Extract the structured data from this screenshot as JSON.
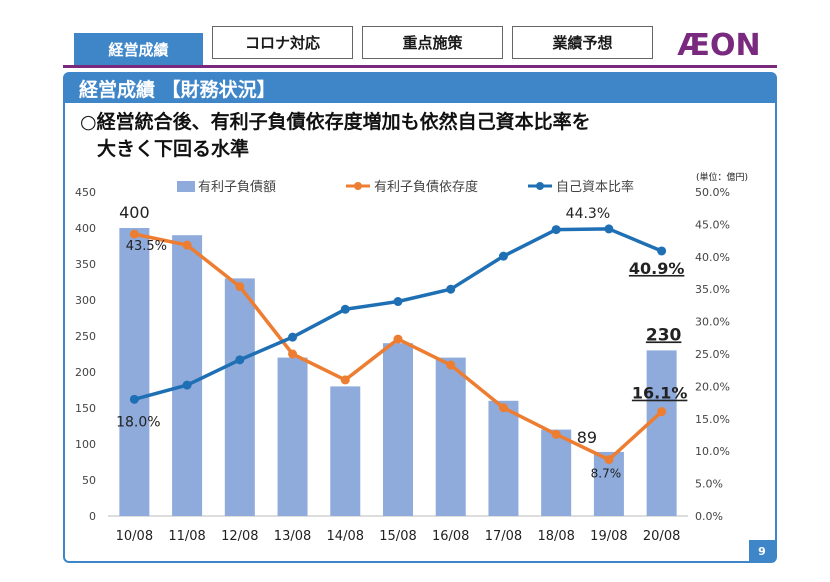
{
  "tabs": [
    {
      "label": "経営成績",
      "active": true
    },
    {
      "label": "コロナ対応",
      "active": false
    },
    {
      "label": "重点施策",
      "active": false
    },
    {
      "label": "業績予想",
      "active": false
    }
  ],
  "logo_text": "ÆON",
  "section_title": "経営成績 【財務状況】",
  "headline_line1": "○経営統合後、有利子負債依存度増加も依然自己資本比率を",
  "headline_line2": "大きく下回る水準",
  "page_number": "9",
  "colors": {
    "accent": "#3f86c9",
    "brand_purple": "#7a2a7e",
    "bar": "#8eabdc",
    "debt_ratio_line": "#ed7d31",
    "equity_ratio_line": "#1f6fb4"
  },
  "chart_data": {
    "type": "bar",
    "unit_note": "(単位：億円)",
    "categories": [
      "10/08",
      "11/08",
      "12/08",
      "13/08",
      "14/08",
      "15/08",
      "16/08",
      "17/08",
      "18/08",
      "19/08",
      "20/08"
    ],
    "left_axis": {
      "ylim": [
        0,
        450
      ],
      "ticks": [
        "0",
        "50",
        "100",
        "150",
        "200",
        "250",
        "300",
        "350",
        "400",
        "450"
      ]
    },
    "right_axis": {
      "ylim": [
        0,
        50
      ],
      "ticks": [
        "0.0%",
        "5.0%",
        "10.0%",
        "15.0%",
        "20.0%",
        "25.0%",
        "30.0%",
        "35.0%",
        "40.0%",
        "45.0%",
        "50.0%"
      ]
    },
    "series": [
      {
        "name": "有利子負債額",
        "type": "bar",
        "axis": "left",
        "values": [
          400,
          390,
          330,
          220,
          180,
          240,
          220,
          160,
          120,
          89,
          230
        ]
      },
      {
        "name": "有利子負債依存度",
        "type": "line",
        "axis": "right",
        "values": [
          43.5,
          41.8,
          35.4,
          25.0,
          21.0,
          27.3,
          23.3,
          16.7,
          12.6,
          8.7,
          16.1
        ]
      },
      {
        "name": "自己資本比率",
        "type": "line",
        "axis": "right",
        "values": [
          18.0,
          20.2,
          24.1,
          27.6,
          31.9,
          33.1,
          35.0,
          40.1,
          44.2,
          44.3,
          40.9
        ]
      }
    ],
    "annotations": [
      {
        "text": "400",
        "cat": 0,
        "value": 400,
        "axis": "left",
        "size": 16,
        "bold": false,
        "underline": false,
        "dx": 0,
        "dy": -10
      },
      {
        "text": "43.5%",
        "cat": 0,
        "value": 43.5,
        "axis": "right",
        "size": 13,
        "bold": false,
        "underline": false,
        "dx": 12,
        "dy": 16
      },
      {
        "text": "18.0%",
        "cat": 0,
        "value": 18.0,
        "axis": "right",
        "size": 14,
        "bold": false,
        "underline": false,
        "dx": 4,
        "dy": 27
      },
      {
        "text": "44.3%",
        "cat": 9,
        "value": 44.3,
        "axis": "right",
        "size": 14,
        "bold": false,
        "underline": false,
        "dx": -21,
        "dy": -11
      },
      {
        "text": "40.9%",
        "cat": 10,
        "value": 40.9,
        "axis": "right",
        "size": 16,
        "bold": true,
        "underline": true,
        "dx": -5,
        "dy": 23
      },
      {
        "text": "230",
        "cat": 10,
        "value": 230,
        "axis": "left",
        "size": 17,
        "bold": true,
        "underline": true,
        "dx": 2,
        "dy": -10
      },
      {
        "text": "16.1%",
        "cat": 10,
        "value": 16.1,
        "axis": "right",
        "size": 16,
        "bold": true,
        "underline": true,
        "dx": -2,
        "dy": -13
      },
      {
        "text": "89",
        "cat": 9,
        "value": 89,
        "axis": "left",
        "size": 16,
        "bold": false,
        "underline": false,
        "dx": -22,
        "dy": -9
      },
      {
        "text": "8.7%",
        "cat": 9,
        "value": 8.7,
        "axis": "right",
        "size": 12,
        "bold": false,
        "underline": false,
        "dx": -3,
        "dy": 18
      }
    ]
  }
}
